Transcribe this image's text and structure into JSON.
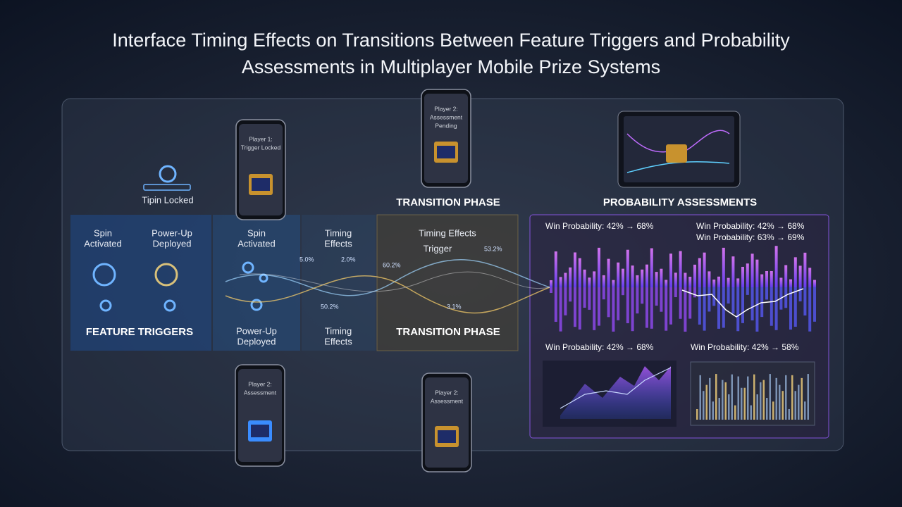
{
  "header": {
    "title": "Interface Timing Effects on Transitions Between Feature Triggers and Probability Assessments in Multiplayer Mobile Prize Systems"
  },
  "top": {
    "lock_label": "Tipin Locked",
    "transition_label": "TRANSITION PHASE",
    "assessment_label": "PROBABILITY ASSESSMENTS"
  },
  "phones": [
    {
      "lines": [
        "Player 1:",
        "Trigger Locked"
      ]
    },
    {
      "lines": [
        "Player 2:",
        "Assessment",
        "Pending"
      ]
    },
    {
      "lines": [
        "Player 2:",
        "Assessment"
      ]
    },
    {
      "lines": [
        "Player 2:",
        "Assessment"
      ]
    }
  ],
  "panel": {
    "col1_a": [
      "Spin",
      "Activated"
    ],
    "col1_b": [
      "Power-Up",
      "Deployed"
    ],
    "col1_footer": "FEATURE TRIGGERS",
    "col2_top": [
      "Spin",
      "Activated"
    ],
    "col2_bottom": [
      "Power-Up",
      "Deployed"
    ],
    "col3_top": [
      "Timing",
      "Effects"
    ],
    "col3_bottom": [
      "Timing",
      "Effects"
    ],
    "col4_top": "Timing Effects",
    "col4_trigger": "Trigger",
    "col4_footer": "TRANSITION PHASE",
    "wave_labels": [
      "5.0%",
      "2.0%",
      "60.2%",
      "53.2%",
      "50.2%",
      "3.1%"
    ]
  },
  "assessments": {
    "top_left": "Win Probability: 42% → 68%",
    "top_right": [
      "Win Probability: 42% → 68%",
      "Win Probability: 63% → 69%"
    ],
    "bottom_left": "Win Probability: 42% → 68%",
    "bottom_right": "Win Probability: 42% → 58%"
  }
}
